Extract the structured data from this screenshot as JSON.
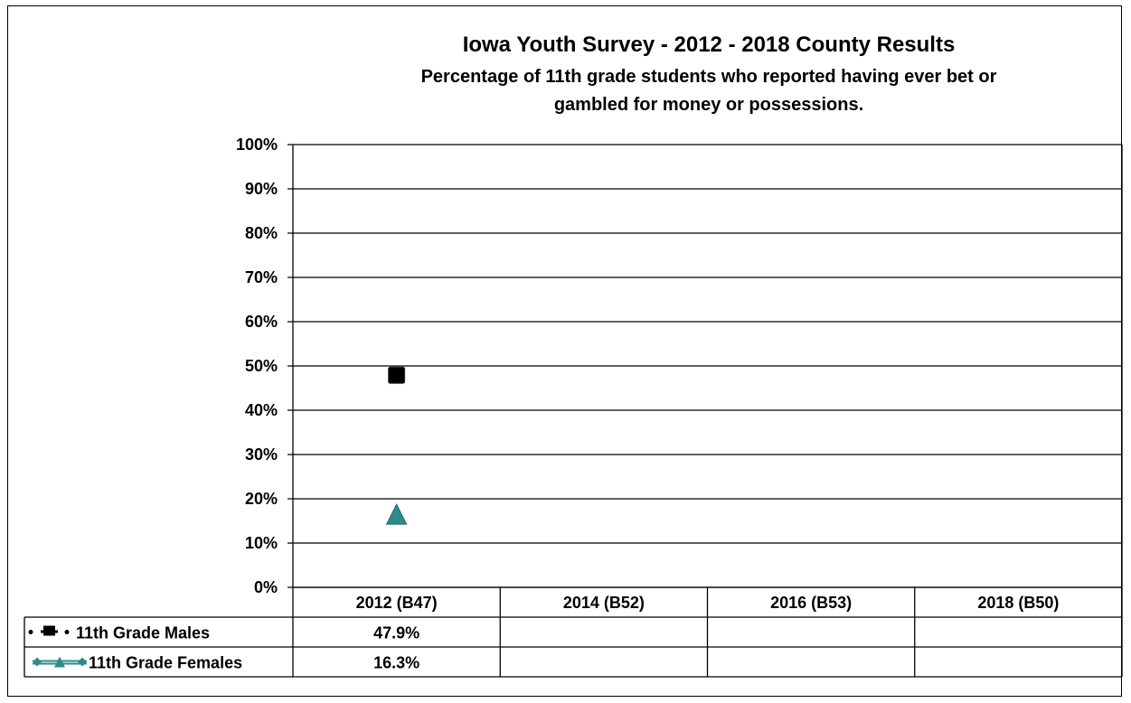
{
  "chart_data": {
    "type": "line",
    "title": "Iowa Youth Survey - 2012 - 2018 County Results",
    "subtitle_line1": "Percentage of 11th grade students who reported having ever bet or",
    "subtitle_line2": "gambled  for money or possessions.",
    "categories": [
      "2012 (B47)",
      "2014 (B52)",
      "2016 (B53)",
      "2018 (B50)"
    ],
    "y_ticks": [
      "0%",
      "10%",
      "20%",
      "30%",
      "40%",
      "50%",
      "60%",
      "70%",
      "80%",
      "90%",
      "100%"
    ],
    "ylim": [
      0,
      100
    ],
    "grid": true,
    "legend_placement": "data-table",
    "series": [
      {
        "name": "11th Grade Males",
        "values": [
          47.9,
          null,
          null,
          null
        ],
        "labels": [
          "47.9%",
          "",
          "",
          ""
        ],
        "color": "#000000",
        "marker": "square"
      },
      {
        "name": "11th Grade Females",
        "values": [
          16.3,
          null,
          null,
          null
        ],
        "labels": [
          "16.3%",
          "",
          "",
          ""
        ],
        "color": "#2e8b8b",
        "marker": "triangle"
      }
    ]
  }
}
